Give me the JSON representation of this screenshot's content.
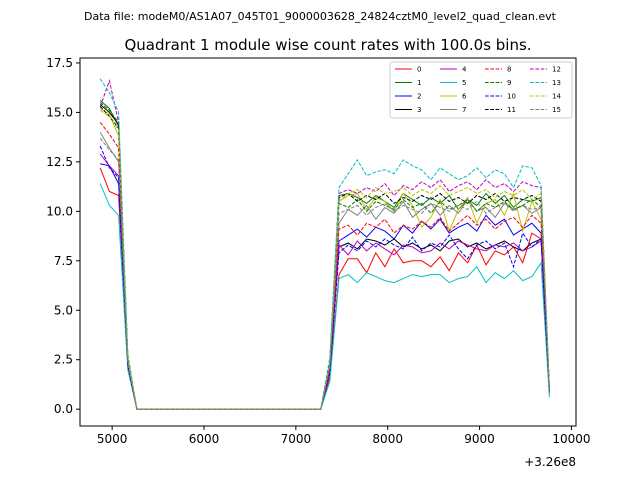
{
  "suptitle": "Data file: modeM0/AS1A07_045T01_9000003628_24824cztM0_level2_quad_clean.evt",
  "chart_data": {
    "type": "line",
    "title": "Quadrant 1 module wise count rates with 100.0s bins.",
    "xlabel": "",
    "ylabel": "",
    "x_offset_label": "+3.26e8",
    "xlim": [
      4650,
      10050
    ],
    "ylim": [
      -0.85,
      17.75
    ],
    "xticks": [
      5000,
      6000,
      7000,
      8000,
      9000,
      10000
    ],
    "xtick_labels": [
      "5000",
      "6000",
      "7000",
      "8000",
      "9000",
      "10000"
    ],
    "yticks": [
      0.0,
      2.5,
      5.0,
      7.5,
      10.0,
      12.5,
      15.0,
      17.5
    ],
    "ytick_labels": [
      "0.0",
      "2.5",
      "5.0",
      "7.5",
      "10.0",
      "12.5",
      "15.0",
      "17.5"
    ],
    "grid": false,
    "legend_position": "top-right",
    "legend_columns": 4,
    "x": [
      4870,
      4970,
      5070,
      5170,
      5270,
      7270,
      7370,
      7470,
      7570,
      7670,
      7770,
      7870,
      7970,
      8070,
      8170,
      8270,
      8370,
      8470,
      8570,
      8670,
      8770,
      8870,
      8970,
      9070,
      9170,
      9270,
      9370,
      9470,
      9570,
      9670,
      9760
    ],
    "series": [
      {
        "name": "0",
        "color": "#ff0000",
        "dash": false,
        "values": [
          12.2,
          11.0,
          10.8,
          2.3,
          0.0,
          0.0,
          1.6,
          6.8,
          7.6,
          7.6,
          6.9,
          7.9,
          7.2,
          8.1,
          7.4,
          7.5,
          7.5,
          7.2,
          7.7,
          7.0,
          7.9,
          7.4,
          8.3,
          7.3,
          8.0,
          7.8,
          8.2,
          7.4,
          8.9,
          8.6,
          0.8
        ]
      },
      {
        "name": "1",
        "color": "#008000",
        "dash": false,
        "values": [
          15.6,
          15.2,
          14.3,
          2.5,
          0.0,
          0.0,
          2.3,
          10.8,
          10.9,
          10.7,
          10.4,
          10.8,
          10.5,
          10.2,
          10.9,
          10.6,
          10.3,
          10.7,
          10.4,
          10.8,
          10.1,
          10.6,
          10.3,
          10.9,
          10.4,
          10.8,
          10.2,
          10.6,
          10.5,
          10.7,
          1.0
        ]
      },
      {
        "name": "2",
        "color": "#0000ff",
        "dash": false,
        "values": [
          12.4,
          12.3,
          11.4,
          2.4,
          0.0,
          0.0,
          1.9,
          8.5,
          8.8,
          9.1,
          8.7,
          9.2,
          9.0,
          8.6,
          9.3,
          8.9,
          9.5,
          9.1,
          9.6,
          8.9,
          9.2,
          9.4,
          9.0,
          9.8,
          9.3,
          9.6,
          8.8,
          9.1,
          9.4,
          8.9,
          0.9
        ]
      },
      {
        "name": "3",
        "color": "#000000",
        "dash": false,
        "values": [
          15.4,
          15.0,
          14.4,
          2.4,
          0.0,
          0.0,
          2.0,
          8.2,
          8.4,
          8.1,
          8.6,
          8.5,
          8.3,
          8.6,
          8.2,
          8.4,
          8.1,
          8.3,
          8.0,
          8.5,
          8.6,
          8.2,
          8.4,
          8.1,
          8.3,
          8.5,
          8.2,
          8.0,
          8.4,
          8.6,
          1.0
        ]
      },
      {
        "name": "4",
        "color": "#bf00bf",
        "dash": false,
        "values": [
          12.9,
          12.3,
          11.8,
          2.1,
          0.0,
          0.0,
          1.8,
          8.3,
          7.8,
          8.5,
          8.0,
          8.4,
          8.1,
          7.8,
          8.3,
          8.2,
          7.9,
          8.0,
          8.4,
          8.1,
          8.5,
          8.3,
          8.1,
          8.0,
          8.3,
          8.2,
          8.4,
          8.0,
          8.2,
          8.5,
          0.9
        ]
      },
      {
        "name": "5",
        "color": "#00bfbf",
        "dash": false,
        "values": [
          11.4,
          10.3,
          9.8,
          2.0,
          0.0,
          0.0,
          1.4,
          6.6,
          6.8,
          6.4,
          6.9,
          6.7,
          6.5,
          6.4,
          6.6,
          6.8,
          6.7,
          6.8,
          6.8,
          6.4,
          6.6,
          6.7,
          7.2,
          6.4,
          6.9,
          6.6,
          7.0,
          6.5,
          6.7,
          7.4,
          0.6
        ]
      },
      {
        "name": "6",
        "color": "#bfbf00",
        "dash": false,
        "values": [
          15.2,
          14.9,
          13.8,
          2.6,
          0.0,
          0.0,
          2.3,
          10.5,
          10.8,
          10.9,
          10.1,
          10.7,
          10.5,
          10.0,
          10.9,
          10.3,
          9.2,
          9.7,
          10.6,
          9.0,
          10.1,
          10.7,
          9.4,
          10.4,
          10.6,
          9.8,
          10.9,
          9.0,
          10.5,
          9.6,
          1.0
        ]
      },
      {
        "name": "7",
        "color": "#808080",
        "dash": false,
        "values": [
          14.0,
          13.2,
          12.5,
          2.2,
          0.0,
          0.0,
          2.1,
          9.4,
          10.1,
          9.8,
          10.3,
          9.6,
          10.2,
          9.9,
          10.5,
          9.7,
          10.1,
          10.4,
          9.8,
          10.3,
          9.9,
          10.6,
          10.0,
          10.2,
          9.7,
          10.4,
          10.1,
          10.3,
          9.9,
          10.2,
          1.0
        ]
      },
      {
        "name": "8",
        "color": "#ff0000",
        "dash": true,
        "values": [
          14.5,
          13.9,
          13.2,
          2.3,
          0.0,
          0.0,
          2.0,
          9.1,
          9.3,
          8.8,
          9.4,
          9.2,
          9.6,
          8.9,
          9.3,
          9.1,
          9.5,
          9.2,
          9.7,
          9.0,
          9.4,
          9.8,
          9.3,
          9.6,
          9.1,
          9.5,
          9.7,
          9.2,
          9.8,
          9.4,
          1.0
        ]
      },
      {
        "name": "9",
        "color": "#008000",
        "dash": true,
        "values": [
          15.5,
          15.1,
          14.5,
          2.7,
          0.0,
          0.0,
          2.3,
          10.4,
          10.2,
          10.6,
          10.0,
          10.5,
          10.3,
          10.1,
          10.6,
          10.2,
          10.4,
          9.9,
          10.5,
          10.1,
          10.3,
          10.6,
          10.0,
          10.4,
          10.2,
          10.5,
          10.1,
          10.3,
          10.6,
          10.2,
          1.0
        ]
      },
      {
        "name": "10",
        "color": "#0000ff",
        "dash": true,
        "values": [
          13.3,
          12.2,
          11.7,
          2.2,
          0.0,
          0.0,
          1.9,
          7.9,
          8.3,
          8.0,
          8.5,
          8.2,
          8.6,
          8.3,
          8.1,
          8.7,
          8.0,
          8.4,
          8.2,
          8.8,
          8.1,
          7.6,
          8.3,
          8.5,
          8.1,
          8.4,
          7.2,
          8.9,
          8.2,
          8.6,
          0.9
        ]
      },
      {
        "name": "11",
        "color": "#000000",
        "dash": true,
        "values": [
          15.3,
          14.8,
          14.2,
          2.5,
          0.0,
          0.0,
          2.3,
          10.7,
          10.9,
          10.5,
          10.8,
          10.6,
          10.9,
          10.4,
          10.7,
          10.5,
          10.8,
          10.6,
          10.9,
          10.5,
          10.7,
          10.4,
          10.8,
          10.6,
          10.9,
          10.5,
          10.7,
          10.6,
          10.8,
          10.5,
          1.0
        ]
      },
      {
        "name": "12",
        "color": "#bf00bf",
        "dash": true,
        "values": [
          15.3,
          16.6,
          14.5,
          2.6,
          0.0,
          0.0,
          2.4,
          10.9,
          11.1,
          10.9,
          11.2,
          11.0,
          11.4,
          10.8,
          11.3,
          11.1,
          11.5,
          11.2,
          11.6,
          11.0,
          11.3,
          11.5,
          11.1,
          11.6,
          11.2,
          11.4,
          11.0,
          11.5,
          11.3,
          11.2,
          1.0
        ]
      },
      {
        "name": "13",
        "color": "#00bfbf",
        "dash": true,
        "values": [
          16.7,
          16.0,
          15.0,
          2.8,
          0.0,
          0.0,
          2.6,
          11.2,
          11.9,
          12.6,
          11.8,
          12.0,
          12.1,
          11.9,
          12.6,
          12.3,
          12.1,
          11.6,
          12.2,
          11.9,
          11.6,
          11.8,
          12.2,
          11.7,
          12.1,
          11.9,
          11.2,
          12.3,
          12.2,
          11.3,
          1.1
        ]
      },
      {
        "name": "14",
        "color": "#bfbf00",
        "dash": true,
        "values": [
          15.1,
          14.8,
          14.1,
          2.6,
          0.0,
          0.0,
          2.3,
          10.5,
          10.9,
          11.1,
          10.7,
          11.2,
          10.9,
          11.0,
          11.2,
          10.8,
          11.1,
          10.9,
          11.3,
          10.8,
          11.0,
          11.2,
          10.9,
          11.1,
          10.7,
          11.0,
          10.8,
          11.1,
          10.6,
          10.9,
          1.0
        ]
      },
      {
        "name": "15",
        "color": "#808080",
        "dash": true,
        "values": [
          13.7,
          13.1,
          12.6,
          2.3,
          0.0,
          0.0,
          2.1,
          9.9,
          10.1,
          10.3,
          9.8,
          10.2,
          10.4,
          10.0,
          10.3,
          10.1,
          9.9,
          10.4,
          10.2,
          10.0,
          10.3,
          10.1,
          10.5,
          9.9,
          10.2,
          10.4,
          10.0,
          10.3,
          10.1,
          10.2,
          1.0
        ]
      }
    ]
  }
}
